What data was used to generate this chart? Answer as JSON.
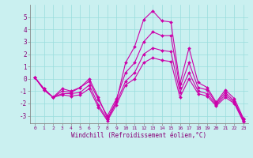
{
  "xlabel": "Windchill (Refroidissement éolien,°C)",
  "background_color": "#caf0f0",
  "line_color": "#cc00aa",
  "grid_color": "#99dddd",
  "xlim": [
    -0.5,
    23.5
  ],
  "ylim": [
    -3.6,
    6.0
  ],
  "yticks": [
    -3,
    -2,
    -1,
    0,
    1,
    2,
    3,
    4,
    5
  ],
  "xticks": [
    0,
    1,
    2,
    3,
    4,
    5,
    6,
    7,
    8,
    9,
    10,
    11,
    12,
    13,
    14,
    15,
    16,
    17,
    18,
    19,
    20,
    21,
    22,
    23
  ],
  "lines": [
    [
      0.1,
      -0.8,
      -1.5,
      -0.8,
      -1.0,
      -0.7,
      0.0,
      -1.5,
      -3.2,
      -1.8,
      1.3,
      2.6,
      4.8,
      5.5,
      4.7,
      4.6,
      -0.4,
      2.5,
      -0.3,
      -0.7,
      -1.9,
      -0.9,
      -1.6,
      -3.2
    ],
    [
      0.1,
      -0.8,
      -1.5,
      -1.0,
      -1.1,
      -0.7,
      -0.2,
      -1.7,
      -3.0,
      -1.6,
      0.5,
      1.3,
      3.0,
      3.8,
      3.5,
      3.5,
      -0.7,
      1.3,
      -0.7,
      -0.9,
      -2.0,
      -1.1,
      -1.8,
      -3.3
    ],
    [
      0.1,
      -0.9,
      -1.5,
      -1.2,
      -1.2,
      -1.1,
      -0.5,
      -2.1,
      -3.3,
      -1.9,
      -0.2,
      0.5,
      2.0,
      2.5,
      2.3,
      2.2,
      -1.1,
      0.5,
      -1.0,
      -1.2,
      -2.1,
      -1.3,
      -1.9,
      -3.4
    ],
    [
      0.1,
      -0.9,
      -1.5,
      -1.3,
      -1.4,
      -1.3,
      -0.8,
      -2.3,
      -3.4,
      -2.1,
      -0.5,
      0.0,
      1.3,
      1.7,
      1.5,
      1.4,
      -1.5,
      0.0,
      -1.2,
      -1.4,
      -2.2,
      -1.5,
      -2.0,
      -3.5
    ]
  ]
}
